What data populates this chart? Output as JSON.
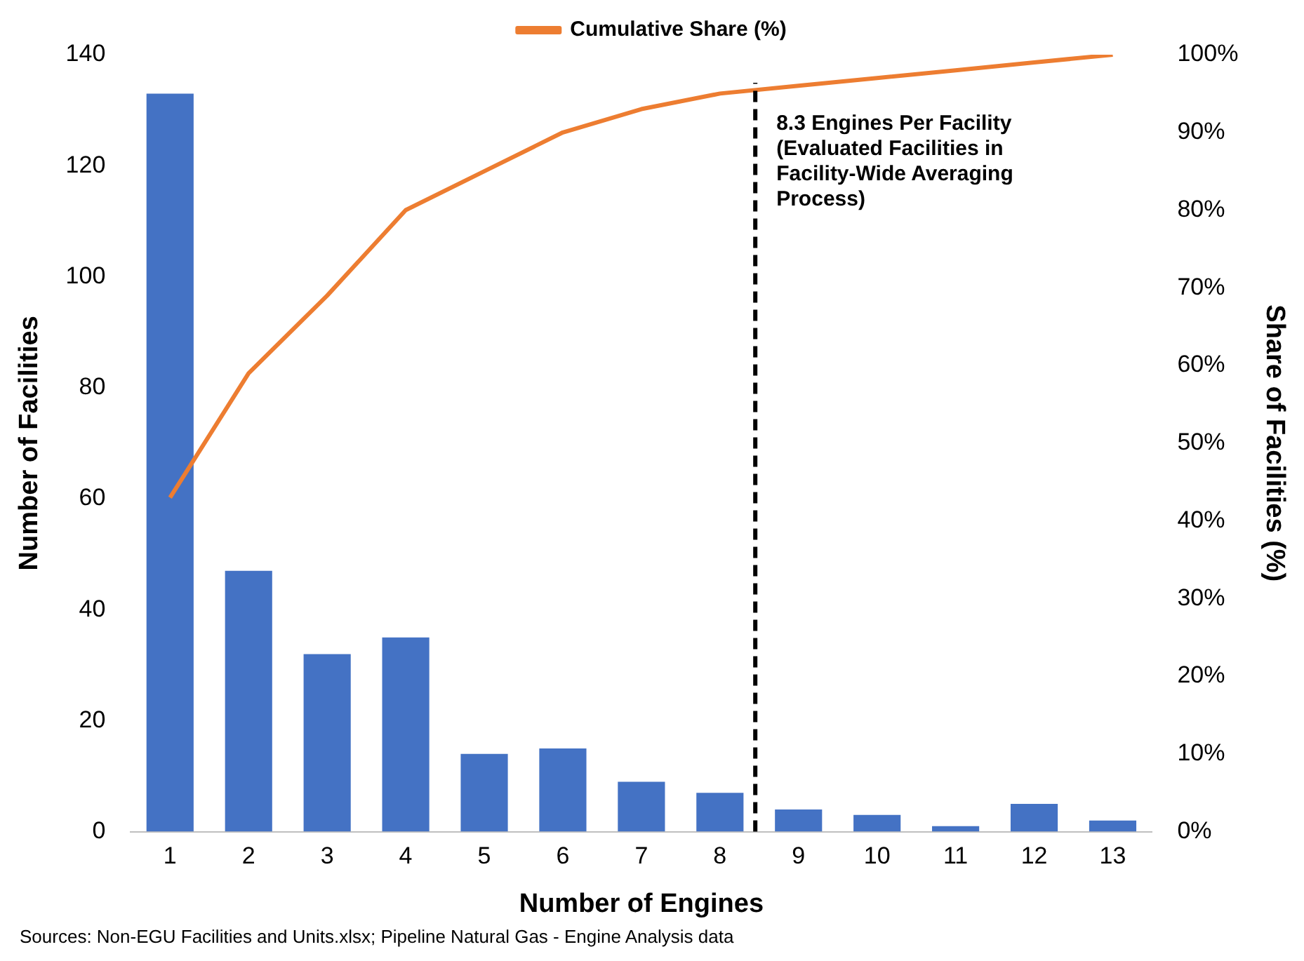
{
  "chart_data": {
    "type": "bar",
    "xlabel": "Number of Engines",
    "ylabel": "Number of Facilities",
    "y2label": "Share of Facilities (%)",
    "x": [
      1,
      2,
      3,
      4,
      5,
      6,
      7,
      8,
      9,
      10,
      11,
      12,
      13
    ],
    "xlim": [
      0.5,
      13.5
    ],
    "xticks": [
      1,
      2,
      3,
      4,
      5,
      6,
      7,
      8,
      9,
      10,
      11,
      12,
      13
    ],
    "ylim": [
      0,
      140
    ],
    "yticks": [
      0,
      20,
      40,
      60,
      80,
      100,
      120,
      140
    ],
    "y2lim": [
      0,
      100
    ],
    "y2ticks": [
      {
        "value": 0,
        "label": "0%"
      },
      {
        "value": 10,
        "label": "10%"
      },
      {
        "value": 20,
        "label": "20%"
      },
      {
        "value": 30,
        "label": "30%"
      },
      {
        "value": 40,
        "label": "40%"
      },
      {
        "value": 50,
        "label": "50%"
      },
      {
        "value": 60,
        "label": "60%"
      },
      {
        "value": 70,
        "label": "70%"
      },
      {
        "value": 80,
        "label": "80%"
      },
      {
        "value": 90,
        "label": "90%"
      },
      {
        "value": 100,
        "label": "100%"
      }
    ],
    "series": [
      {
        "color": "#4472c4",
        "values": [
          133,
          47,
          32,
          35,
          14,
          15,
          9,
          7,
          4,
          3,
          1,
          5,
          2
        ]
      },
      {
        "type": "line",
        "name": "Cumulative Share (%)",
        "axis": "y2",
        "color": "#ed7d31",
        "marker": "none",
        "line_style": "solid",
        "values": [
          43,
          59,
          69,
          80,
          85,
          90,
          93,
          95,
          96,
          97,
          98,
          99,
          100
        ]
      }
    ],
    "ref_lines": [
      {
        "axis": "x",
        "value": 8.45,
        "label": "8.3 Engines Per Facility (Evaluated Facilities in Facility-Wide Averaging Process)",
        "color": "#000000",
        "line_style": "dashed"
      }
    ],
    "legend": "top",
    "grid": false,
    "annotations": [
      "Sources: Non-EGU Facilities and Units.xlsx;  Pipeline Natural Gas - Engine Analysis data"
    ]
  }
}
